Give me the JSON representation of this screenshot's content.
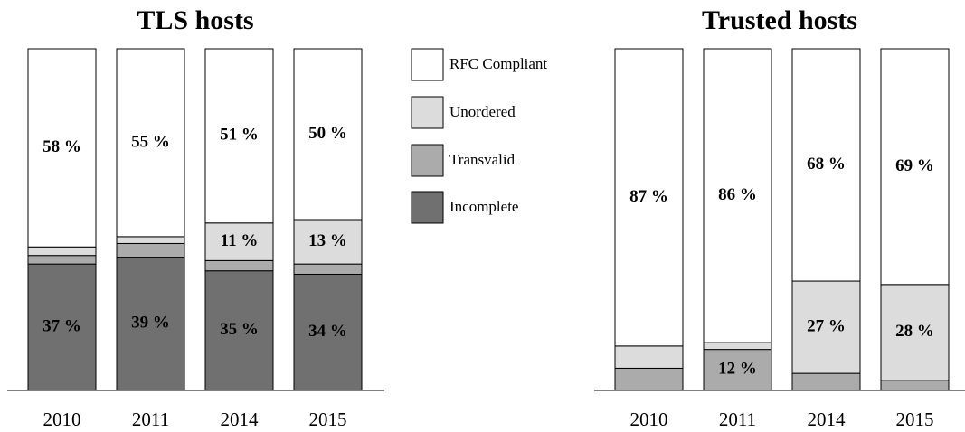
{
  "chart_data": [
    {
      "type": "stacked-bar",
      "title": "TLS hosts",
      "categories": [
        "2010",
        "2011",
        "2014",
        "2015"
      ],
      "ylim": [
        0,
        100
      ],
      "series": [
        {
          "name": "Incomplete",
          "color": "#707070",
          "values": [
            37,
            39,
            35,
            34
          ],
          "value_labels": [
            "37 %",
            "39 %",
            "35 %",
            "34 %"
          ]
        },
        {
          "name": "Transvalid",
          "color": "#ababab",
          "values": [
            2.5,
            4,
            3,
            3
          ],
          "value_labels": [
            null,
            null,
            null,
            null
          ]
        },
        {
          "name": "Unordered",
          "color": "#dcdcdc",
          "values": [
            2.5,
            2,
            11,
            13
          ],
          "value_labels": [
            null,
            null,
            "11 %",
            "13 %"
          ]
        },
        {
          "name": "RFC Compliant",
          "color": "#ffffff",
          "values": [
            58,
            55,
            51,
            50
          ],
          "value_labels": [
            "58 %",
            "55 %",
            "51 %",
            "50 %"
          ]
        }
      ]
    },
    {
      "type": "stacked-bar",
      "title": "Trusted hosts",
      "categories": [
        "2010",
        "2011",
        "2014",
        "2015"
      ],
      "ylim": [
        0,
        100
      ],
      "series": [
        {
          "color": "#707070",
          "values": [
            0,
            0,
            0,
            0
          ],
          "value_labels": [
            null,
            null,
            null,
            null
          ]
        },
        {
          "color": "#ababab",
          "values": [
            6.5,
            12,
            5,
            3
          ],
          "value_labels": [
            null,
            "12 %",
            null,
            null
          ]
        },
        {
          "color": "#dcdcdc",
          "values": [
            6.5,
            2,
            27,
            28
          ],
          "value_labels": [
            null,
            null,
            "27 %",
            "28 %"
          ]
        },
        {
          "color": "#ffffff",
          "values": [
            87,
            86,
            68,
            69
          ],
          "value_labels": [
            "87 %",
            "86 %",
            "68 %",
            "69 %"
          ]
        }
      ]
    }
  ]
}
